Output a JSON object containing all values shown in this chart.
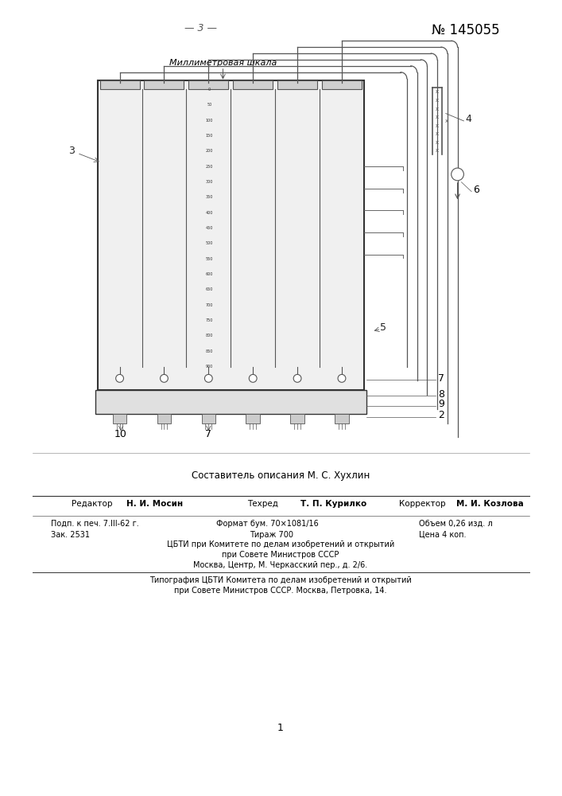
{
  "page_number": "3",
  "patent_number": "№ 145055",
  "bg_color": "#ffffff",
  "diagram": {
    "title_label": "Миллиметровая шкала",
    "scale_values": [
      0,
      50,
      100,
      150,
      200,
      250,
      300,
      350,
      400,
      450,
      500,
      550,
      600,
      650,
      700,
      750,
      800,
      850,
      900
    ],
    "num_columns": 6
  },
  "bottom_text": {
    "composer": "Составитель описания М. С. Хухлин",
    "editor_label": "Редактор",
    "editor_name": "Н. И. Мосин",
    "techred_label": "Техред",
    "techred_name": "Т. П. Курилко",
    "corrector_label": "Корректор",
    "corrector_name": "М. И. Козлова",
    "podp": "Подп. к печ. 7.ІІІ-62 г.",
    "format": "Формат бум. 70×1081/16",
    "obem": "Объем 0,26 изд. л",
    "zak": "Зак. 2531",
    "tirazh": "Тираж 700",
    "tsena": "Цена 4 коп.",
    "line1": "ЦБТИ при Комитете по делам изобретений и открытий",
    "line2": "при Совете Министров СССР",
    "line3": "Москва, Центр, М. Черкасский пер., д. 2/6.",
    "typo1": "Типография ЦБТИ Комитета по делам изобретений и открытий",
    "typo2": "при Совете Министров СССР. Москва, Петровка, 14.",
    "page_mark": "1"
  }
}
